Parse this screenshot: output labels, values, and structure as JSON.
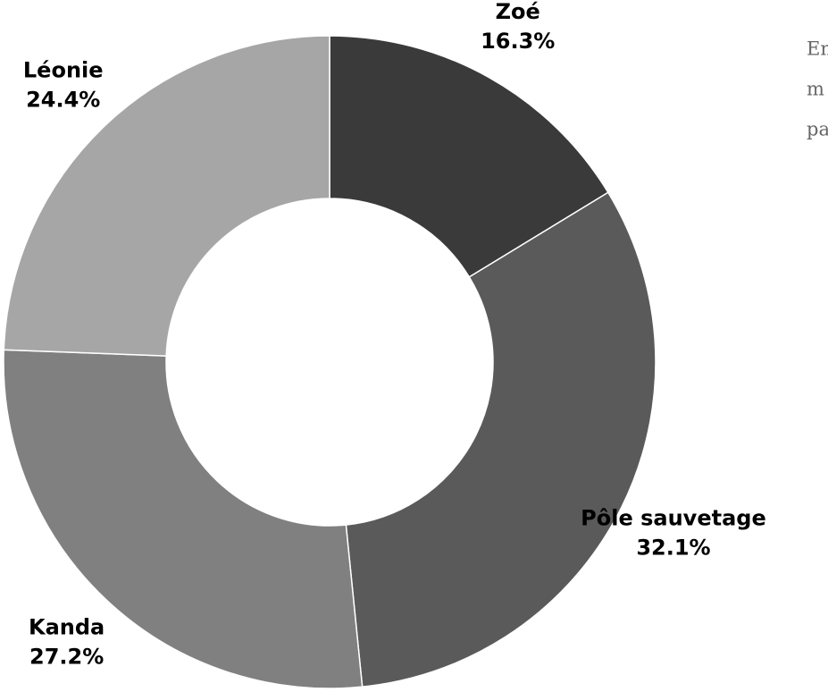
{
  "chart_data": {
    "type": "donut",
    "categories": [
      "Zoé",
      "Pôle sauvetage",
      "Kanda",
      "Léonie"
    ],
    "values": [
      16.3,
      32.1,
      27.2,
      24.4
    ],
    "value_labels": [
      "16.3%",
      "32.1%",
      "27.2%",
      "24.4%"
    ],
    "colors": [
      "#3a3a3a",
      "#5a5a5a",
      "#808080",
      "#a6a6a6"
    ]
  },
  "side_text": {
    "lines": [
      "En",
      "m",
      "pa"
    ]
  }
}
